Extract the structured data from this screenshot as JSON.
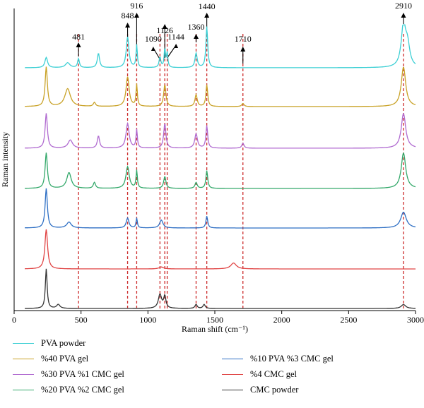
{
  "chart_data": {
    "type": "line",
    "xlabel": "Raman shift (cm⁻¹)",
    "ylabel": "Raman intensity",
    "xlim": [
      0,
      3000
    ],
    "xticks": [
      "0",
      "500",
      "1000",
      "1500",
      "2000",
      "2500",
      "3000"
    ],
    "xtick_values": [
      0,
      500,
      1000,
      1500,
      2000,
      2500,
      3000
    ],
    "marker_lines": [
      481,
      848,
      916,
      1090,
      1126,
      1144,
      1360,
      1440,
      1710,
      2910
    ],
    "annotations": [
      {
        "label": "481",
        "x": 481
      },
      {
        "label": "848",
        "x": 848
      },
      {
        "label": "916",
        "x": 916
      },
      {
        "label": "1090",
        "x": 1090
      },
      {
        "label": "1126",
        "x": 1126
      },
      {
        "label": "1144",
        "x": 1144
      },
      {
        "label": "1360",
        "x": 1360
      },
      {
        "label": "1440",
        "x": 1440
      },
      {
        "label": "1710",
        "x": 1710
      },
      {
        "label": "2910",
        "x": 2910
      }
    ],
    "marker_color": "#cc2a2a",
    "series": [
      {
        "name": "PVA powder",
        "color": "#3ccfd4",
        "peaks": [
          [
            240,
            0.25,
            12
          ],
          [
            400,
            0.12,
            20
          ],
          [
            481,
            0.22,
            8
          ],
          [
            630,
            0.35,
            10
          ],
          [
            848,
            0.75,
            12
          ],
          [
            916,
            0.55,
            6
          ],
          [
            1090,
            0.25,
            8
          ],
          [
            1126,
            0.45,
            6
          ],
          [
            1144,
            0.35,
            6
          ],
          [
            1360,
            0.35,
            10
          ],
          [
            1440,
            1.0,
            8
          ],
          [
            2910,
            1.0,
            20
          ],
          [
            2940,
            0.5,
            20
          ]
        ]
      },
      {
        "name": "%40 PVA gel",
        "color": "#c9a227",
        "peaks": [
          [
            240,
            1.0,
            10
          ],
          [
            400,
            0.45,
            25
          ],
          [
            600,
            0.1,
            10
          ],
          [
            848,
            0.75,
            14
          ],
          [
            916,
            0.55,
            6
          ],
          [
            1126,
            0.55,
            10
          ],
          [
            1360,
            0.3,
            10
          ],
          [
            1440,
            0.55,
            8
          ],
          [
            1710,
            0.08,
            10
          ],
          [
            2910,
            1.0,
            20
          ]
        ]
      },
      {
        "name": "%30 PVA %1 CMC gel",
        "color": "#b06ad0",
        "peaks": [
          [
            240,
            0.85,
            10
          ],
          [
            420,
            0.2,
            20
          ],
          [
            630,
            0.3,
            10
          ],
          [
            848,
            0.6,
            14
          ],
          [
            916,
            0.45,
            6
          ],
          [
            1126,
            0.6,
            10
          ],
          [
            1360,
            0.35,
            12
          ],
          [
            1440,
            0.55,
            8
          ],
          [
            1710,
            0.12,
            10
          ],
          [
            2910,
            0.85,
            20
          ]
        ]
      },
      {
        "name": "%20 PVA %2 CMC gel",
        "color": "#33a86a",
        "peaks": [
          [
            240,
            0.9,
            10
          ],
          [
            410,
            0.4,
            20
          ],
          [
            600,
            0.15,
            10
          ],
          [
            848,
            0.55,
            15
          ],
          [
            916,
            0.45,
            6
          ],
          [
            1126,
            0.3,
            10
          ],
          [
            1360,
            0.15,
            10
          ],
          [
            1440,
            0.45,
            8
          ],
          [
            2910,
            0.9,
            20
          ]
        ]
      },
      {
        "name": "%10 PVA %3 CMC gel",
        "color": "#2e6fc4",
        "peaks": [
          [
            240,
            1.0,
            10
          ],
          [
            410,
            0.15,
            20
          ],
          [
            848,
            0.25,
            12
          ],
          [
            916,
            0.25,
            6
          ],
          [
            1100,
            0.2,
            15
          ],
          [
            1440,
            0.3,
            8
          ],
          [
            2910,
            0.4,
            25
          ]
        ]
      },
      {
        "name": "%4 CMC gel",
        "color": "#e04444",
        "peaks": [
          [
            240,
            1.0,
            12
          ],
          [
            1100,
            0.05,
            20
          ],
          [
            1640,
            0.15,
            25
          ]
        ]
      },
      {
        "name": "CMC powder",
        "color": "#333333",
        "peaks": [
          [
            240,
            1.0,
            8
          ],
          [
            330,
            0.1,
            15
          ],
          [
            1090,
            0.35,
            15
          ],
          [
            1126,
            0.3,
            10
          ],
          [
            1360,
            0.1,
            10
          ],
          [
            1420,
            0.1,
            10
          ],
          [
            2910,
            0.1,
            20
          ]
        ]
      }
    ]
  }
}
